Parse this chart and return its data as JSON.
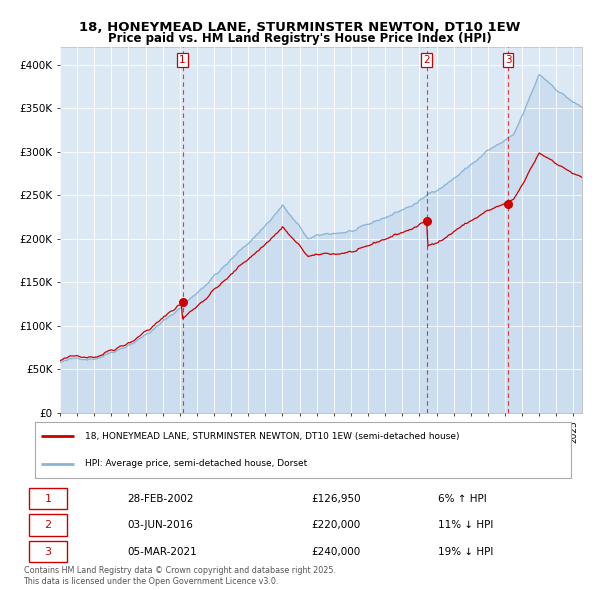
{
  "title": "18, HONEYMEAD LANE, STURMINSTER NEWTON, DT10 1EW",
  "subtitle": "Price paid vs. HM Land Registry's House Price Index (HPI)",
  "background_color": "#ffffff",
  "plot_bg_color": "#dce9f5",
  "legend_line1": "18, HONEYMEAD LANE, STURMINSTER NEWTON, DT10 1EW (semi-detached house)",
  "legend_line2": "HPI: Average price, semi-detached house, Dorset",
  "transactions": [
    {
      "label": "1",
      "date": "28-FEB-2002",
      "price": 126950,
      "pct": "6%",
      "dir": "↑",
      "x_year": 2002.16
    },
    {
      "label": "2",
      "date": "03-JUN-2016",
      "price": 220000,
      "pct": "11%",
      "dir": "↓",
      "x_year": 2016.42
    },
    {
      "label": "3",
      "date": "05-MAR-2021",
      "price": 240000,
      "pct": "19%",
      "dir": "↓",
      "x_year": 2021.18
    }
  ],
  "footer": "Contains HM Land Registry data © Crown copyright and database right 2025.\nThis data is licensed under the Open Government Licence v3.0.",
  "red_line_color": "#cc0000",
  "blue_line_color": "#8ab4d4",
  "blue_fill_color": "#c5d9ec",
  "ylim": [
    0,
    420000
  ],
  "yticks": [
    0,
    50000,
    100000,
    150000,
    200000,
    250000,
    300000,
    350000,
    400000
  ],
  "ytick_labels": [
    "£0",
    "£50K",
    "£100K",
    "£150K",
    "£200K",
    "£250K",
    "£300K",
    "£350K",
    "£400K"
  ],
  "xmin": 1995.0,
  "xmax": 2025.5
}
